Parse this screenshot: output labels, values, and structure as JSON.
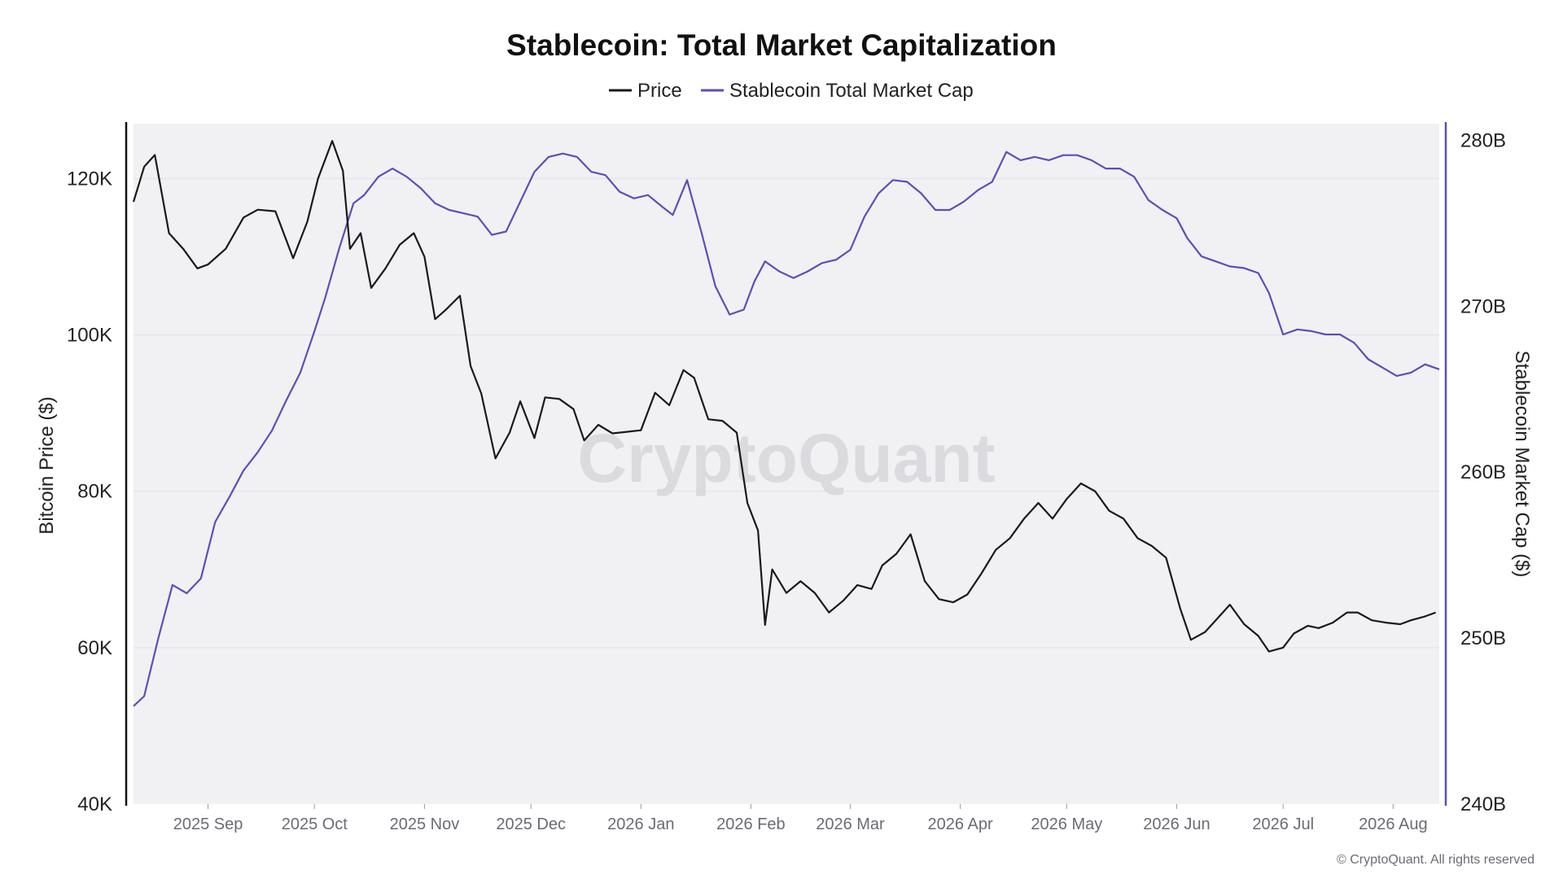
{
  "chart_data": {
    "type": "line",
    "title": "Stablecoin: Total Market Capitalization",
    "legend_position": "top-center",
    "grid": true,
    "watermark": "CryptoQuant",
    "copyright": "© CryptoQuant. All rights reserved",
    "colors": {
      "price": "#1a1a1a",
      "market_cap": "#5b4fb8",
      "plot_background": "#f1f1f4",
      "gridline": "#e2e2e7"
    },
    "x_axis": {
      "start": "2025-08-11",
      "end": "2026-08-14",
      "tick_dates": [
        "2025-09-01",
        "2025-10-01",
        "2025-11-01",
        "2025-12-01",
        "2026-01-01",
        "2026-02-01",
        "2026-03-01",
        "2026-04-01",
        "2026-05-01",
        "2026-06-01",
        "2026-07-01",
        "2026-08-01"
      ],
      "tick_labels": [
        "2025 Sep",
        "2025 Oct",
        "2025 Nov",
        "2025 Dec",
        "2026 Jan",
        "2026 Feb",
        "2026 Mar",
        "2026 Apr",
        "2026 May",
        "2026 Jun",
        "2026 Jul",
        "2026 Aug"
      ]
    },
    "y_left": {
      "label": "Bitcoin Price ($)",
      "range": [
        40000,
        127000
      ],
      "ticks": [
        40000,
        60000,
        80000,
        100000,
        120000
      ],
      "tick_labels": [
        "40K",
        "60K",
        "80K",
        "100K",
        "120K"
      ]
    },
    "y_right": {
      "label": "Stablecoin Market Cap ($)",
      "range": [
        240,
        281
      ],
      "unit": "billions USD",
      "ticks": [
        240,
        250,
        260,
        270,
        280
      ],
      "tick_labels": [
        "240B",
        "250B",
        "260B",
        "270B",
        "280B"
      ]
    },
    "series": [
      {
        "name": "Price",
        "axis": "left",
        "points": [
          [
            "2025-08-11",
            117000
          ],
          [
            "2025-08-14",
            121500
          ],
          [
            "2025-08-17",
            123000
          ],
          [
            "2025-08-21",
            113000
          ],
          [
            "2025-08-25",
            111000
          ],
          [
            "2025-08-29",
            108500
          ],
          [
            "2025-09-01",
            109000
          ],
          [
            "2025-09-06",
            111000
          ],
          [
            "2025-09-11",
            115000
          ],
          [
            "2025-09-15",
            116000
          ],
          [
            "2025-09-20",
            115800
          ],
          [
            "2025-09-25",
            109800
          ],
          [
            "2025-09-29",
            114500
          ],
          [
            "2025-10-02",
            120000
          ],
          [
            "2025-10-06",
            124800
          ],
          [
            "2025-10-09",
            121000
          ],
          [
            "2025-10-11",
            111000
          ],
          [
            "2025-10-14",
            113000
          ],
          [
            "2025-10-17",
            106000
          ],
          [
            "2025-10-21",
            108500
          ],
          [
            "2025-10-25",
            111500
          ],
          [
            "2025-10-29",
            113000
          ],
          [
            "2025-11-01",
            110000
          ],
          [
            "2025-11-04",
            102000
          ],
          [
            "2025-11-07",
            103200
          ],
          [
            "2025-11-11",
            105000
          ],
          [
            "2025-11-14",
            96000
          ],
          [
            "2025-11-17",
            92500
          ],
          [
            "2025-11-21",
            84200
          ],
          [
            "2025-11-25",
            87500
          ],
          [
            "2025-11-28",
            91500
          ],
          [
            "2025-12-02",
            86800
          ],
          [
            "2025-12-05",
            92000
          ],
          [
            "2025-12-09",
            91800
          ],
          [
            "2025-12-13",
            90500
          ],
          [
            "2025-12-16",
            86500
          ],
          [
            "2025-12-20",
            88500
          ],
          [
            "2025-12-24",
            87400
          ],
          [
            "2025-12-28",
            87600
          ],
          [
            "2026-01-01",
            87800
          ],
          [
            "2026-01-05",
            92600
          ],
          [
            "2026-01-09",
            91000
          ],
          [
            "2026-01-13",
            95500
          ],
          [
            "2026-01-16",
            94500
          ],
          [
            "2026-01-20",
            89200
          ],
          [
            "2026-01-24",
            89000
          ],
          [
            "2026-01-28",
            87500
          ],
          [
            "2026-01-31",
            78500
          ],
          [
            "2026-02-03",
            75000
          ],
          [
            "2026-02-05",
            62900
          ],
          [
            "2026-02-07",
            70000
          ],
          [
            "2026-02-11",
            67000
          ],
          [
            "2026-02-15",
            68500
          ],
          [
            "2026-02-19",
            67000
          ],
          [
            "2026-02-23",
            64500
          ],
          [
            "2026-02-27",
            66000
          ],
          [
            "2026-03-03",
            68000
          ],
          [
            "2026-03-07",
            67500
          ],
          [
            "2026-03-10",
            70500
          ],
          [
            "2026-03-14",
            72000
          ],
          [
            "2026-03-18",
            74500
          ],
          [
            "2026-03-22",
            68500
          ],
          [
            "2026-03-26",
            66200
          ],
          [
            "2026-03-30",
            65800
          ],
          [
            "2026-04-03",
            66800
          ],
          [
            "2026-04-07",
            69500
          ],
          [
            "2026-04-11",
            72500
          ],
          [
            "2026-04-15",
            74000
          ],
          [
            "2026-04-19",
            76500
          ],
          [
            "2026-04-23",
            78500
          ],
          [
            "2026-04-27",
            76500
          ],
          [
            "2026-05-01",
            79000
          ],
          [
            "2026-05-05",
            81000
          ],
          [
            "2026-05-09",
            80000
          ],
          [
            "2026-05-13",
            77500
          ],
          [
            "2026-05-17",
            76500
          ],
          [
            "2026-05-21",
            74000
          ],
          [
            "2026-05-25",
            73000
          ],
          [
            "2026-05-29",
            71500
          ],
          [
            "2026-06-02",
            65000
          ],
          [
            "2026-06-05",
            61000
          ],
          [
            "2026-06-09",
            62000
          ],
          [
            "2026-06-13",
            64000
          ],
          [
            "2026-06-16",
            65500
          ],
          [
            "2026-06-20",
            63000
          ],
          [
            "2026-06-24",
            61500
          ],
          [
            "2026-06-27",
            59500
          ],
          [
            "2026-07-01",
            60000
          ],
          [
            "2026-07-04",
            61800
          ],
          [
            "2026-07-08",
            62800
          ],
          [
            "2026-07-11",
            62500
          ],
          [
            "2026-07-15",
            63200
          ],
          [
            "2026-07-19",
            64500
          ],
          [
            "2026-07-22",
            64500
          ],
          [
            "2026-07-26",
            63500
          ],
          [
            "2026-07-30",
            63200
          ],
          [
            "2026-08-03",
            63000
          ],
          [
            "2026-08-06",
            63500
          ],
          [
            "2026-08-10",
            64000
          ],
          [
            "2026-08-13",
            64500
          ]
        ]
      },
      {
        "name": "Stablecoin Total Market Cap",
        "axis": "right",
        "points": [
          [
            "2025-08-11",
            245.9
          ],
          [
            "2025-08-14",
            246.5
          ],
          [
            "2025-08-18",
            250.0
          ],
          [
            "2025-08-22",
            253.2
          ],
          [
            "2025-08-26",
            252.7
          ],
          [
            "2025-08-30",
            253.6
          ],
          [
            "2025-09-03",
            257.0
          ],
          [
            "2025-09-07",
            258.5
          ],
          [
            "2025-09-11",
            260.1
          ],
          [
            "2025-09-15",
            261.2
          ],
          [
            "2025-09-19",
            262.5
          ],
          [
            "2025-09-23",
            264.3
          ],
          [
            "2025-09-27",
            266.0
          ],
          [
            "2025-10-01",
            268.5
          ],
          [
            "2025-10-04",
            270.5
          ],
          [
            "2025-10-08",
            273.5
          ],
          [
            "2025-10-12",
            276.2
          ],
          [
            "2025-10-15",
            276.7
          ],
          [
            "2025-10-19",
            277.8
          ],
          [
            "2025-10-23",
            278.3
          ],
          [
            "2025-10-27",
            277.8
          ],
          [
            "2025-10-31",
            277.1
          ],
          [
            "2025-11-04",
            276.2
          ],
          [
            "2025-11-08",
            275.8
          ],
          [
            "2025-11-12",
            275.6
          ],
          [
            "2025-11-16",
            275.4
          ],
          [
            "2025-11-20",
            274.3
          ],
          [
            "2025-11-24",
            274.5
          ],
          [
            "2025-11-28",
            276.3
          ],
          [
            "2025-12-02",
            278.1
          ],
          [
            "2025-12-06",
            279.0
          ],
          [
            "2025-12-10",
            279.2
          ],
          [
            "2025-12-14",
            279.0
          ],
          [
            "2025-12-18",
            278.1
          ],
          [
            "2025-12-22",
            277.9
          ],
          [
            "2025-12-26",
            276.9
          ],
          [
            "2025-12-30",
            276.5
          ],
          [
            "2026-01-03",
            276.7
          ],
          [
            "2026-01-07",
            276.0
          ],
          [
            "2026-01-10",
            275.5
          ],
          [
            "2026-01-14",
            277.6
          ],
          [
            "2026-01-18",
            274.5
          ],
          [
            "2026-01-22",
            271.2
          ],
          [
            "2026-01-26",
            269.5
          ],
          [
            "2026-01-30",
            269.8
          ],
          [
            "2026-02-02",
            271.5
          ],
          [
            "2026-02-05",
            272.7
          ],
          [
            "2026-02-09",
            272.1
          ],
          [
            "2026-02-13",
            271.7
          ],
          [
            "2026-02-17",
            272.1
          ],
          [
            "2026-02-21",
            272.6
          ],
          [
            "2026-02-25",
            272.8
          ],
          [
            "2026-03-01",
            273.4
          ],
          [
            "2026-03-05",
            275.4
          ],
          [
            "2026-03-09",
            276.8
          ],
          [
            "2026-03-13",
            277.6
          ],
          [
            "2026-03-17",
            277.5
          ],
          [
            "2026-03-21",
            276.8
          ],
          [
            "2026-03-25",
            275.8
          ],
          [
            "2026-03-29",
            275.8
          ],
          [
            "2026-04-02",
            276.3
          ],
          [
            "2026-04-06",
            277.0
          ],
          [
            "2026-04-10",
            277.5
          ],
          [
            "2026-04-14",
            279.3
          ],
          [
            "2026-04-18",
            278.8
          ],
          [
            "2026-04-22",
            279.0
          ],
          [
            "2026-04-26",
            278.8
          ],
          [
            "2026-04-30",
            279.1
          ],
          [
            "2026-05-04",
            279.1
          ],
          [
            "2026-05-08",
            278.8
          ],
          [
            "2026-05-12",
            278.3
          ],
          [
            "2026-05-16",
            278.3
          ],
          [
            "2026-05-20",
            277.8
          ],
          [
            "2026-05-24",
            276.4
          ],
          [
            "2026-05-28",
            275.8
          ],
          [
            "2026-06-01",
            275.3
          ],
          [
            "2026-06-04",
            274.1
          ],
          [
            "2026-06-08",
            273.0
          ],
          [
            "2026-06-12",
            272.7
          ],
          [
            "2026-06-16",
            272.4
          ],
          [
            "2026-06-20",
            272.3
          ],
          [
            "2026-06-24",
            272.0
          ],
          [
            "2026-06-27",
            270.8
          ],
          [
            "2026-07-01",
            268.3
          ],
          [
            "2026-07-05",
            268.6
          ],
          [
            "2026-07-09",
            268.5
          ],
          [
            "2026-07-13",
            268.3
          ],
          [
            "2026-07-17",
            268.3
          ],
          [
            "2026-07-21",
            267.8
          ],
          [
            "2026-07-25",
            266.8
          ],
          [
            "2026-07-29",
            266.3
          ],
          [
            "2026-08-02",
            265.8
          ],
          [
            "2026-08-06",
            266.0
          ],
          [
            "2026-08-10",
            266.5
          ],
          [
            "2026-08-14",
            266.2
          ]
        ]
      }
    ]
  }
}
